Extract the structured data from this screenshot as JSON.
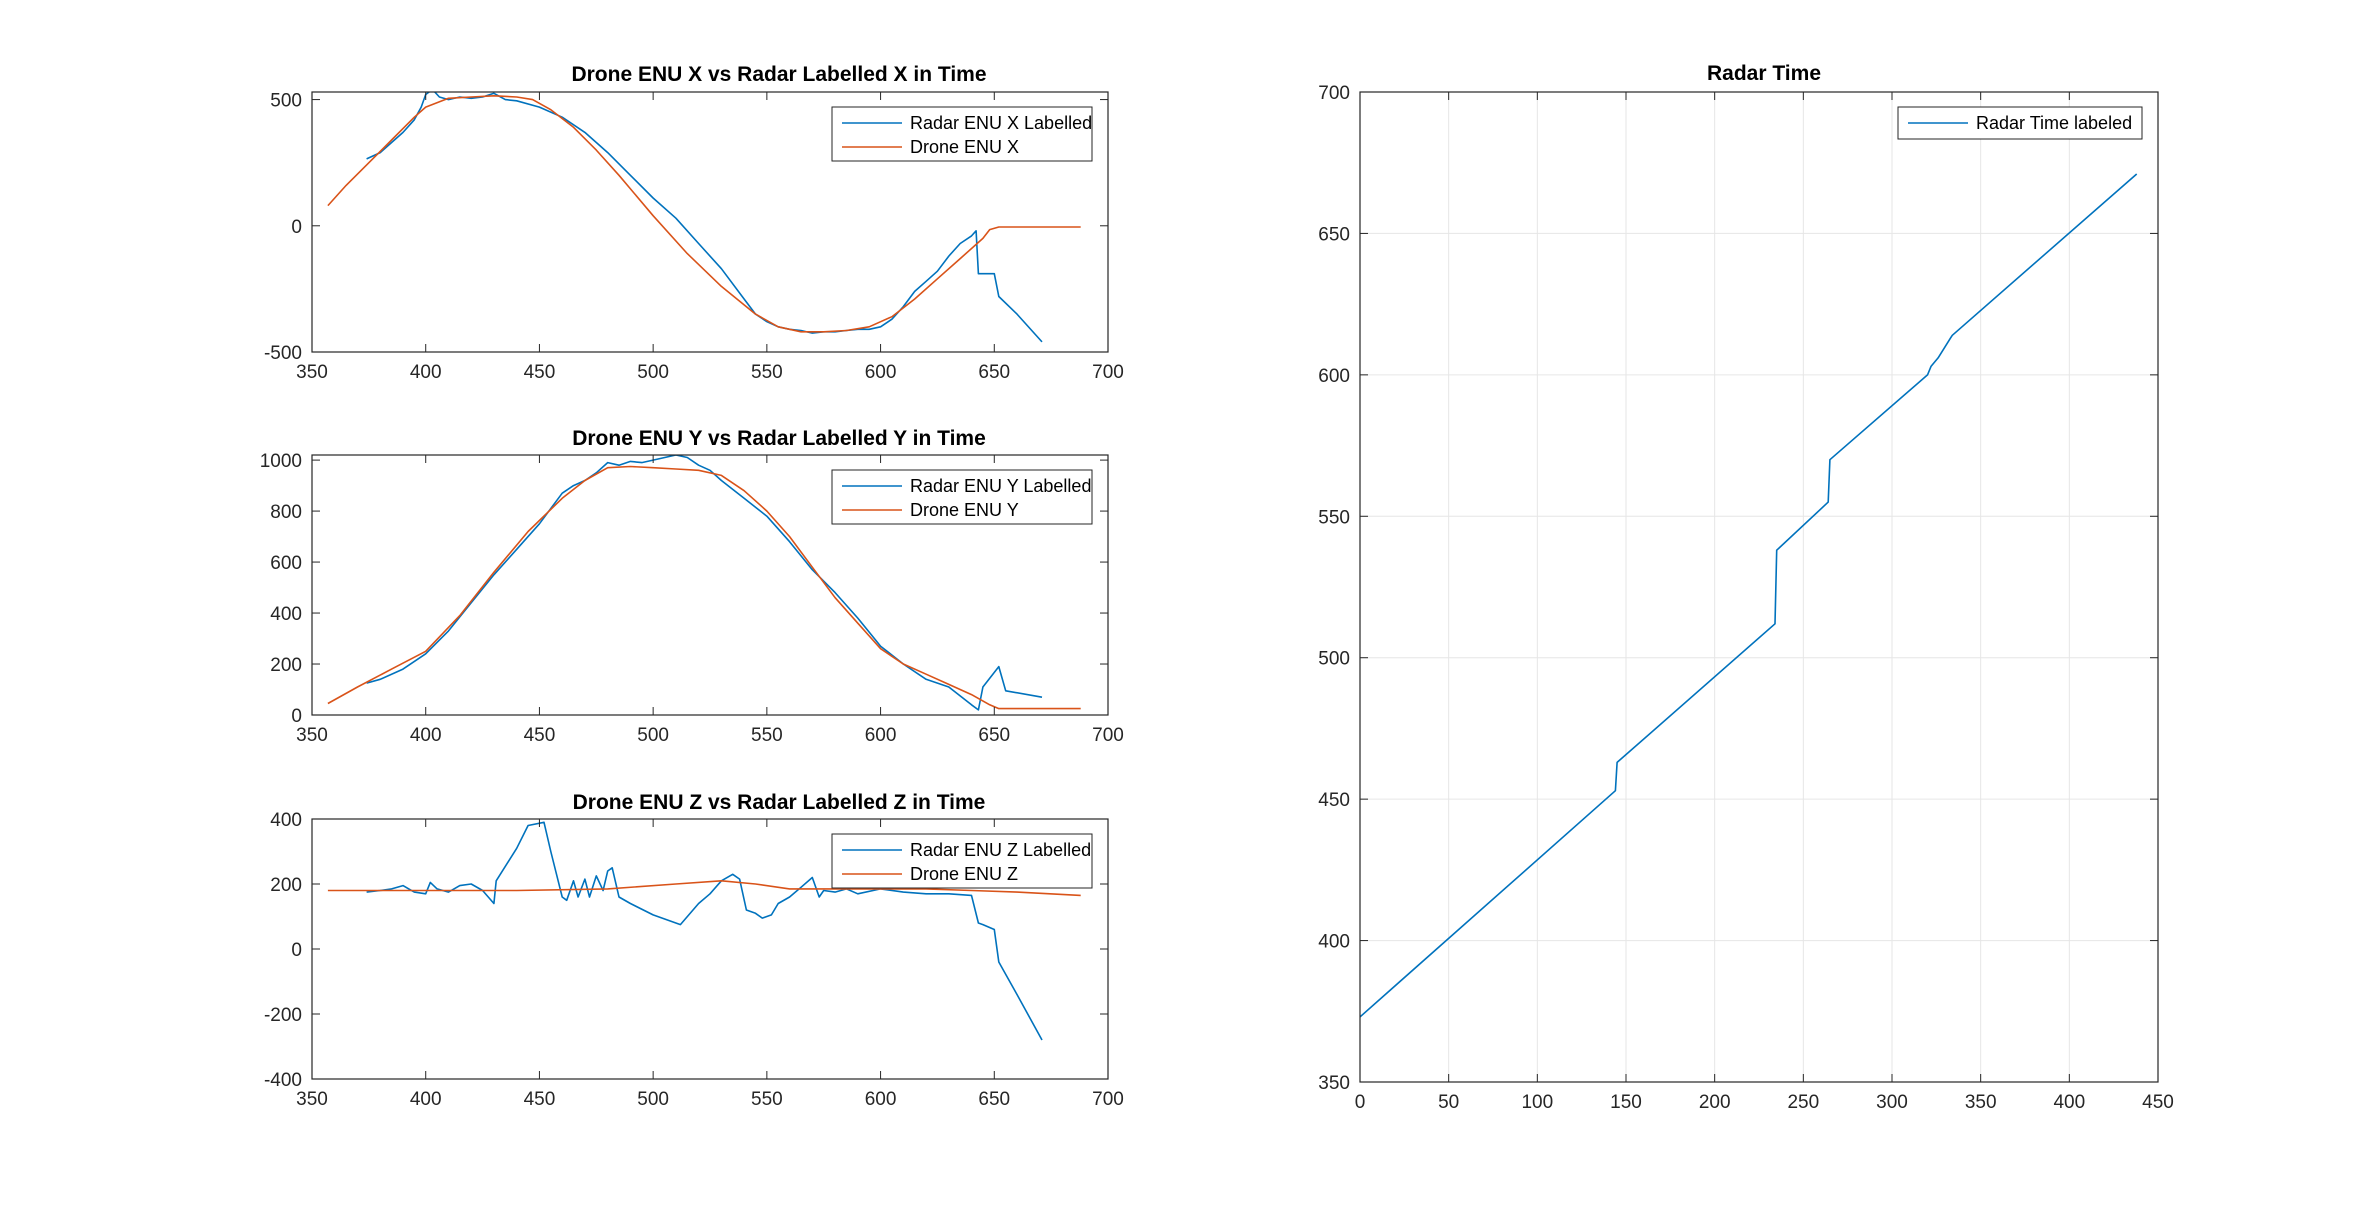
{
  "figure": {
    "background": "#ffffff"
  },
  "colors": {
    "radar": "#0072BD",
    "drone": "#D95319",
    "grid": "#e6e6e6",
    "axis": "#262626"
  },
  "chart_data": [
    {
      "id": "x",
      "type": "line",
      "title": "Drone ENU X vs Radar Labelled X in Time",
      "xlabel": "",
      "ylabel": "",
      "xlim": [
        350,
        700
      ],
      "ylim": [
        -500,
        530
      ],
      "xticks": [
        350,
        400,
        450,
        500,
        550,
        600,
        650,
        700
      ],
      "yticks": [
        -500,
        0,
        500
      ],
      "grid": false,
      "legend": "top-right",
      "series": [
        {
          "name": "Radar ENU X Labelled",
          "color": "#0072BD",
          "x": [
            374,
            380,
            385,
            390,
            395,
            398,
            400,
            403,
            406,
            410,
            415,
            420,
            425,
            430,
            435,
            440,
            450,
            460,
            470,
            480,
            490,
            500,
            510,
            520,
            530,
            540,
            545,
            550,
            555,
            560,
            565,
            570,
            575,
            580,
            585,
            590,
            595,
            600,
            605,
            610,
            615,
            620,
            625,
            630,
            635,
            640,
            642,
            643,
            650,
            652,
            660,
            671
          ],
          "y": [
            265,
            290,
            330,
            370,
            420,
            470,
            520,
            540,
            510,
            500,
            510,
            505,
            510,
            525,
            500,
            495,
            470,
            430,
            370,
            290,
            200,
            110,
            30,
            -70,
            -170,
            -290,
            -350,
            -380,
            -400,
            -410,
            -415,
            -425,
            -420,
            -420,
            -415,
            -410,
            -410,
            -400,
            -370,
            -320,
            -260,
            -220,
            -180,
            -120,
            -70,
            -40,
            -20,
            -190,
            -190,
            -280,
            -350,
            -460
          ]
        },
        {
          "name": "Drone ENU X",
          "color": "#D95319",
          "x": [
            357,
            365,
            375,
            385,
            395,
            400,
            410,
            420,
            430,
            440,
            447,
            455,
            465,
            475,
            485,
            500,
            515,
            530,
            545,
            555,
            565,
            575,
            585,
            595,
            605,
            615,
            625,
            635,
            645,
            648,
            652,
            660,
            688
          ],
          "y": [
            80,
            160,
            250,
            340,
            430,
            470,
            505,
            510,
            515,
            510,
            500,
            460,
            390,
            300,
            200,
            40,
            -110,
            -240,
            -350,
            -400,
            -420,
            -420,
            -415,
            -400,
            -360,
            -290,
            -210,
            -130,
            -50,
            -15,
            -5,
            -5,
            -5
          ]
        }
      ]
    },
    {
      "id": "y",
      "type": "line",
      "title": "Drone ENU Y vs Radar Labelled Y in Time",
      "xlabel": "",
      "ylabel": "",
      "xlim": [
        350,
        700
      ],
      "ylim": [
        0,
        1020
      ],
      "xticks": [
        350,
        400,
        450,
        500,
        550,
        600,
        650,
        700
      ],
      "yticks": [
        0,
        200,
        400,
        600,
        800,
        1000
      ],
      "grid": false,
      "legend": "top-right",
      "series": [
        {
          "name": "Radar ENU Y Labelled",
          "color": "#0072BD",
          "x": [
            374,
            380,
            390,
            400,
            410,
            420,
            430,
            440,
            450,
            460,
            465,
            470,
            475,
            480,
            485,
            490,
            495,
            500,
            510,
            515,
            520,
            525,
            530,
            540,
            550,
            560,
            570,
            580,
            590,
            600,
            610,
            620,
            630,
            640,
            643,
            645,
            652,
            655,
            671
          ],
          "y": [
            125,
            140,
            180,
            240,
            330,
            440,
            550,
            650,
            750,
            870,
            900,
            920,
            950,
            990,
            980,
            995,
            990,
            1000,
            1020,
            1010,
            980,
            960,
            920,
            850,
            780,
            680,
            570,
            480,
            380,
            270,
            200,
            140,
            110,
            40,
            20,
            110,
            190,
            95,
            70
          ]
        },
        {
          "name": "Drone ENU Y",
          "color": "#D95319",
          "x": [
            357,
            370,
            385,
            400,
            415,
            430,
            445,
            460,
            470,
            480,
            490,
            500,
            510,
            520,
            530,
            540,
            550,
            560,
            570,
            580,
            590,
            600,
            610,
            620,
            630,
            640,
            648,
            652,
            660,
            688
          ],
          "y": [
            45,
            110,
            180,
            250,
            390,
            560,
            720,
            850,
            920,
            970,
            975,
            970,
            965,
            960,
            940,
            880,
            800,
            700,
            580,
            460,
            360,
            260,
            200,
            160,
            120,
            80,
            40,
            25,
            25,
            25
          ]
        }
      ]
    },
    {
      "id": "z",
      "type": "line",
      "title": "Drone ENU Z vs Radar Labelled Z in Time",
      "xlabel": "",
      "ylabel": "",
      "xlim": [
        350,
        700
      ],
      "ylim": [
        -400,
        400
      ],
      "xticks": [
        350,
        400,
        450,
        500,
        550,
        600,
        650,
        700
      ],
      "yticks": [
        -400,
        -200,
        0,
        200,
        400
      ],
      "grid": false,
      "legend": "top-right",
      "series": [
        {
          "name": "Radar ENU Z Labelled",
          "color": "#0072BD",
          "x": [
            374,
            380,
            385,
            390,
            395,
            400,
            402,
            405,
            410,
            415,
            420,
            425,
            430,
            431,
            440,
            445,
            452,
            455,
            460,
            462,
            465,
            467,
            470,
            472,
            475,
            478,
            480,
            482,
            485,
            490,
            500,
            512,
            520,
            525,
            530,
            535,
            538,
            541,
            545,
            548,
            552,
            555,
            560,
            565,
            570,
            573,
            575,
            580,
            585,
            590,
            600,
            610,
            620,
            630,
            640,
            643,
            645,
            650,
            652,
            660,
            671
          ],
          "y": [
            175,
            180,
            185,
            195,
            175,
            170,
            205,
            185,
            175,
            195,
            200,
            180,
            140,
            210,
            310,
            380,
            390,
            300,
            160,
            150,
            210,
            160,
            215,
            160,
            225,
            180,
            240,
            250,
            160,
            140,
            105,
            75,
            140,
            170,
            210,
            230,
            215,
            120,
            110,
            95,
            105,
            140,
            160,
            190,
            220,
            160,
            180,
            175,
            185,
            170,
            185,
            175,
            170,
            170,
            165,
            80,
            75,
            60,
            -40,
            -140,
            -280
          ]
        },
        {
          "name": "Drone ENU Z",
          "color": "#D95319",
          "x": [
            357,
            400,
            440,
            480,
            510,
            530,
            545,
            560,
            580,
            600,
            620,
            640,
            660,
            688
          ],
          "y": [
            180,
            180,
            180,
            185,
            200,
            210,
            200,
            185,
            185,
            185,
            185,
            180,
            175,
            165
          ]
        }
      ]
    },
    {
      "id": "time",
      "type": "line",
      "title": "Radar Time",
      "xlabel": "",
      "ylabel": "",
      "xlim": [
        0,
        450
      ],
      "ylim": [
        350,
        700
      ],
      "xticks": [
        0,
        50,
        100,
        150,
        200,
        250,
        300,
        350,
        400,
        450
      ],
      "yticks": [
        350,
        400,
        450,
        500,
        550,
        600,
        650,
        700
      ],
      "grid": true,
      "legend": "top-right",
      "series": [
        {
          "name": "Radar Time labeled",
          "color": "#0072BD",
          "x": [
            0,
            144,
            145,
            234,
            235,
            264,
            265,
            320,
            322,
            326,
            330,
            333,
            334,
            438
          ],
          "y": [
            373,
            453,
            463,
            512,
            538,
            555,
            570,
            600,
            603,
            606,
            610,
            613,
            614,
            671
          ]
        }
      ]
    }
  ]
}
